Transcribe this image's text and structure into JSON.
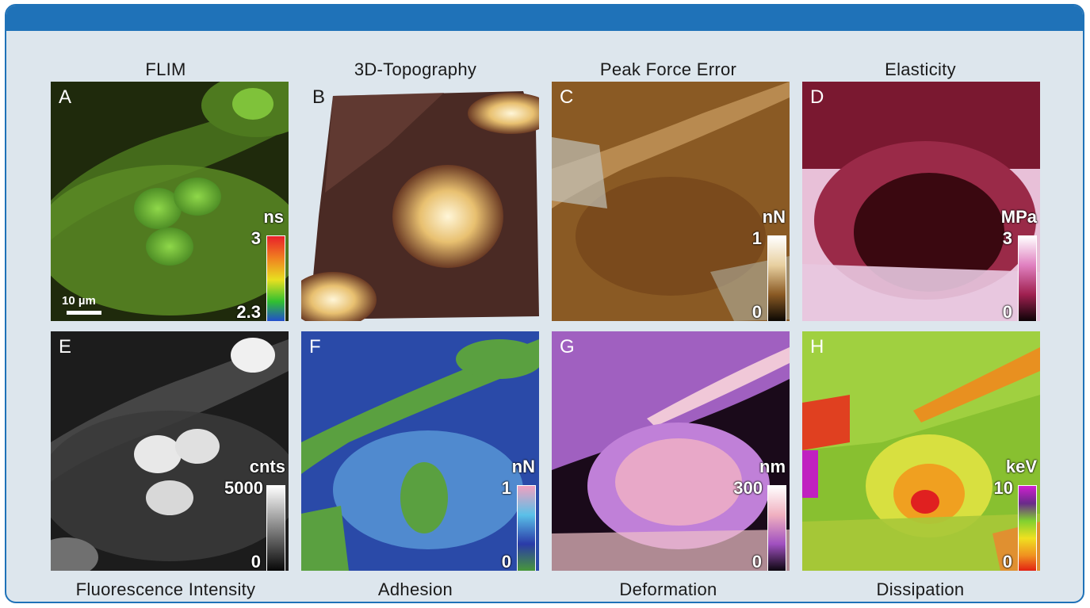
{
  "titles": {
    "top": [
      "FLIM",
      "3D-Topography",
      "Peak Force Error",
      "Elasticity"
    ],
    "bottom": [
      "Fluorescence Intensity",
      "Adhesion",
      "Deformation",
      "Dissipation"
    ]
  },
  "panels": {
    "a": {
      "letter": "A",
      "unit": "ns",
      "max": "3",
      "min": "2.3",
      "scale_label": "10 µm"
    },
    "b": {
      "letter": "B"
    },
    "c": {
      "letter": "C",
      "unit": "nN",
      "max": "1",
      "min": "0"
    },
    "d": {
      "letter": "D",
      "unit": "MPa",
      "max": "3",
      "min": "0"
    },
    "e": {
      "letter": "E",
      "unit": "cnts",
      "max": "5000",
      "min": "0"
    },
    "f": {
      "letter": "F",
      "unit": "nN",
      "max": "1",
      "min": "0"
    },
    "g": {
      "letter": "G",
      "unit": "nm",
      "max": "300",
      "min": "0"
    },
    "h": {
      "letter": "H",
      "unit": "keV",
      "max": "10",
      "min": "0"
    }
  },
  "colors": {
    "frame_border": "#1f72b8",
    "frame_fill": "#dde6ed"
  }
}
